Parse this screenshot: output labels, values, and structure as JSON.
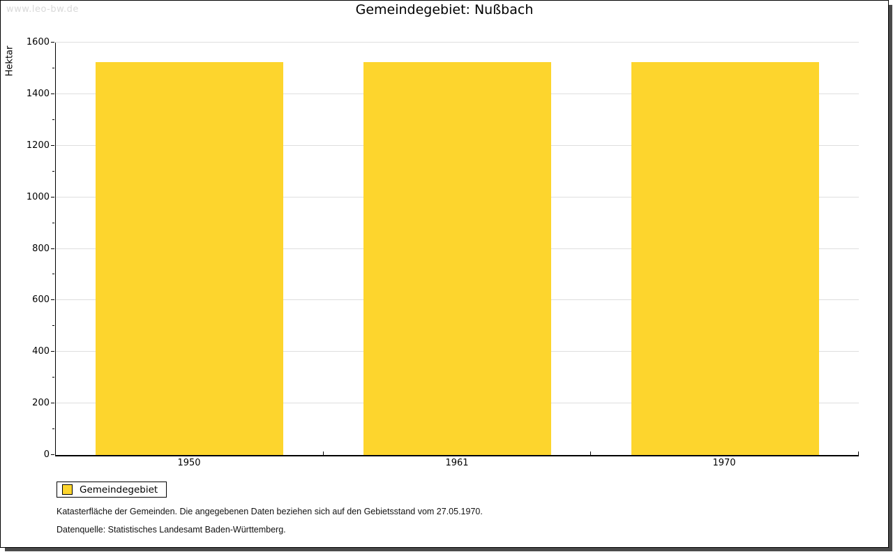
{
  "watermark": "www.leo-bw.de",
  "title": "Gemeindegebiet: Nußbach",
  "legend": {
    "label": "Gemeindegebiet"
  },
  "footnotes": {
    "line1": "Katasterfläche der Gemeinden. Die angegebenen Daten beziehen sich auf den Gebietsstand vom 27.05.1970.",
    "line2": "Datenquelle: Statistisches Landesamt Baden-Württemberg."
  },
  "colors": {
    "bar": "#FDD52D",
    "grid": "#DEDEDE",
    "watermark_text": "#D9D9D9",
    "frame_shadow": "#4A4A4A",
    "axis": "#000000"
  },
  "chart_data": {
    "type": "bar",
    "title": "Gemeindegebiet: Nußbach",
    "categories": [
      "1950",
      "1961",
      "1970"
    ],
    "series": [
      {
        "name": "Gemeindegebiet",
        "values": [
          1523,
          1523,
          1523
        ]
      }
    ],
    "xlabel": "",
    "ylabel": "Hektar",
    "ylim": [
      0,
      1600
    ],
    "ytick_major": 200,
    "ytick_minor": 100,
    "grid": true,
    "legend_position": "bottom-left"
  }
}
